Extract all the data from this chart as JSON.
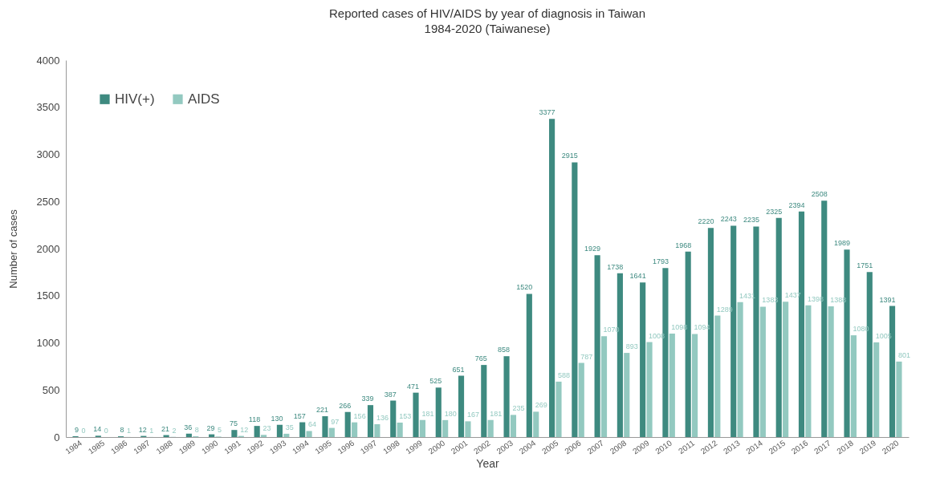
{
  "chart_data": {
    "type": "bar",
    "title": "Reported cases of HIV/AIDS by year of diagnosis in Taiwan",
    "subtitle": "1984-2020 (Taiwanese)",
    "xlabel": "Year",
    "ylabel": "Number of cases",
    "categories": [
      "1984",
      "1985",
      "1986",
      "1987",
      "1988",
      "1989",
      "1990",
      "1991",
      "1992",
      "1993",
      "1994",
      "1995",
      "1996",
      "1997",
      "1998",
      "1999",
      "2000",
      "2001",
      "2002",
      "2003",
      "2004",
      "2005",
      "2006",
      "2007",
      "2008",
      "2009",
      "2010",
      "2011",
      "2012",
      "2013",
      "2014",
      "2015",
      "2016",
      "2017",
      "2018",
      "2019",
      "2020"
    ],
    "series": [
      {
        "name": "HIV(+)",
        "color": "#3e8a80",
        "values": [
          9,
          14,
          8,
          12,
          21,
          36,
          29,
          75,
          118,
          130,
          157,
          221,
          266,
          339,
          387,
          471,
          525,
          651,
          765,
          858,
          1520,
          3377,
          2915,
          1929,
          1738,
          1641,
          1793,
          1968,
          2220,
          2243,
          2235,
          2325,
          2394,
          2508,
          1989,
          1751,
          1391
        ]
      },
      {
        "name": "AIDS",
        "color": "#93c9c0",
        "values": [
          0,
          0,
          1,
          1,
          2,
          8,
          5,
          12,
          23,
          35,
          64,
          97,
          156,
          136,
          153,
          181,
          180,
          167,
          181,
          235,
          269,
          588,
          787,
          1070,
          893,
          1008,
          1098,
          1094,
          1289,
          1431,
          1383,
          1437,
          1398,
          1388,
          1080,
          1005,
          801
        ]
      }
    ],
    "ylim": [
      0,
      4000
    ],
    "yticks": [
      0,
      500,
      1000,
      1500,
      2000,
      2500,
      3000,
      3500,
      4000
    ],
    "legend": "top left",
    "data_labels": true
  }
}
